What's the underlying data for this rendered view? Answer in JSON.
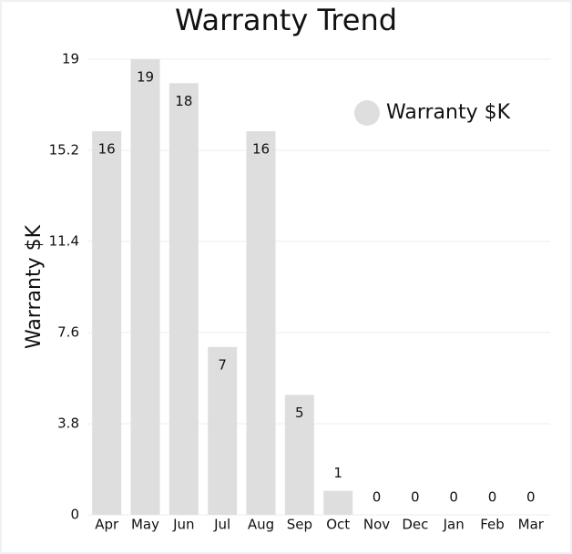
{
  "chart_data": {
    "type": "bar",
    "title": "Warranty Trend",
    "y_label": "Warranty $K",
    "categories": [
      "Apr",
      "May",
      "Jun",
      "Jul",
      "Aug",
      "Sep",
      "Oct",
      "Nov",
      "Dec",
      "Jan",
      "Feb",
      "Mar"
    ],
    "series": [
      {
        "name": "Warranty $K",
        "color": "#dedede",
        "values": [
          16,
          19,
          18,
          7,
          16,
          5,
          1,
          0,
          0,
          0,
          0,
          0
        ]
      }
    ],
    "ylim": [
      0,
      19
    ],
    "yticks": [
      0,
      3.8,
      7.6,
      11.4,
      15.2,
      19
    ],
    "grid": true,
    "legend": "top-right",
    "data_labels": true
  }
}
